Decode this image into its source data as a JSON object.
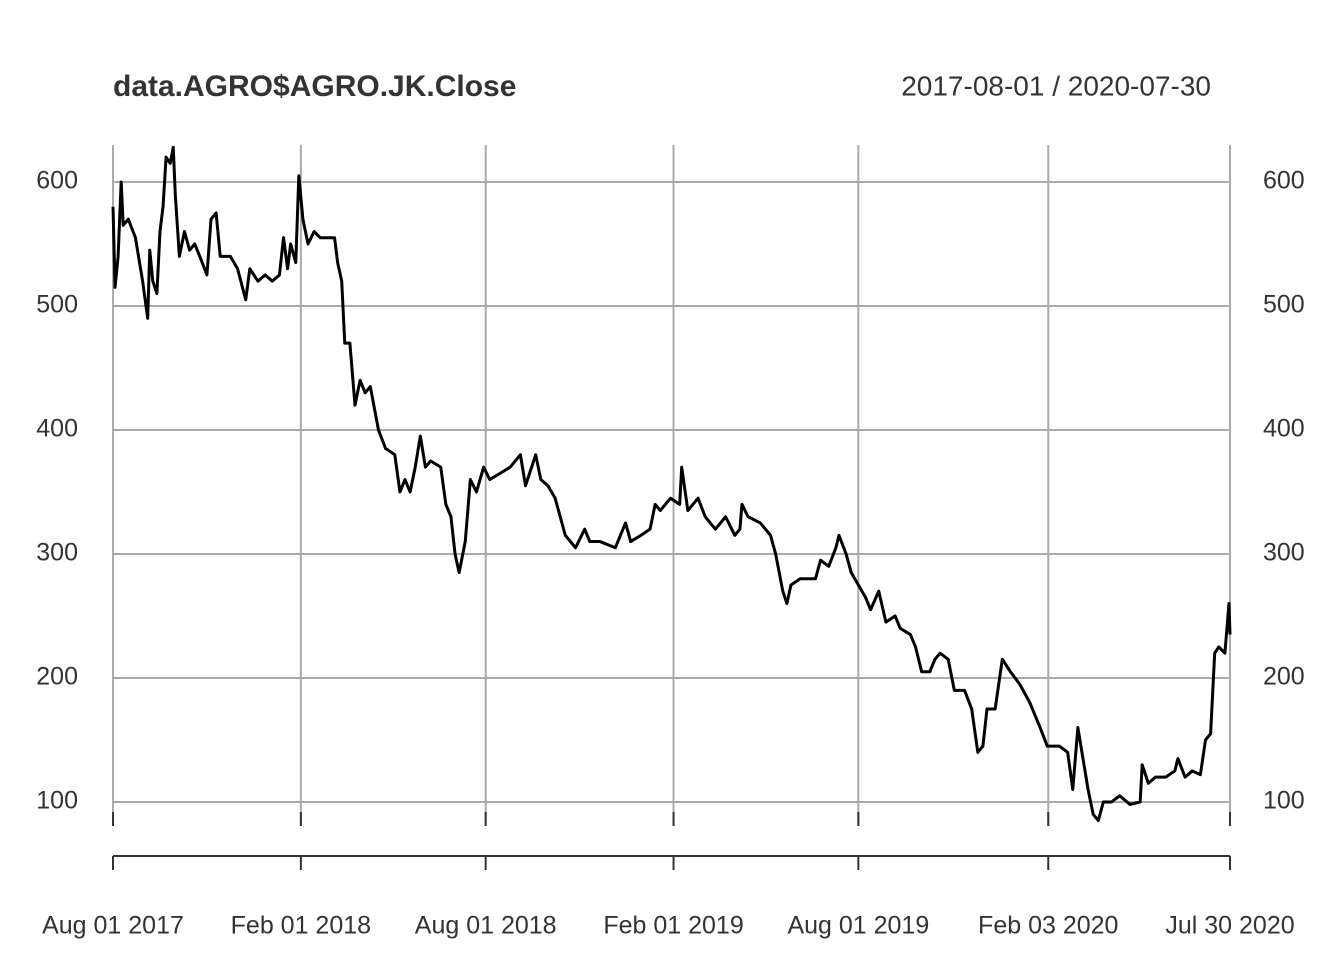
{
  "chart_data": {
    "type": "line",
    "title": "data.AGRO$AGRO.JK.Close",
    "subtitle": "2017-08-01 / 2020-07-30",
    "x": [
      "2017-08-01",
      "2017-08-03",
      "2017-08-06",
      "2017-08-09",
      "2017-08-11",
      "2017-08-16",
      "2017-08-23",
      "2017-08-30",
      "2017-09-04",
      "2017-09-06",
      "2017-09-09",
      "2017-09-13",
      "2017-09-16",
      "2017-09-19",
      "2017-09-22",
      "2017-09-26",
      "2017-09-29",
      "2017-10-01",
      "2017-10-05",
      "2017-10-10",
      "2017-10-15",
      "2017-10-20",
      "2017-10-25",
      "2017-11-01",
      "2017-11-05",
      "2017-11-10",
      "2017-11-14",
      "2017-11-24",
      "2017-12-01",
      "2017-12-09",
      "2017-12-13",
      "2017-12-21",
      "2017-12-28",
      "2018-01-04",
      "2018-01-11",
      "2018-01-15",
      "2018-01-19",
      "2018-01-22",
      "2018-01-27",
      "2018-01-30",
      "2018-02-03",
      "2018-02-08",
      "2018-02-14",
      "2018-02-20",
      "2018-03-06",
      "2018-03-09",
      "2018-03-13",
      "2018-03-16",
      "2018-03-21",
      "2018-03-26",
      "2018-03-31",
      "2018-04-05",
      "2018-04-10",
      "2018-04-18",
      "2018-04-25",
      "2018-05-04",
      "2018-05-09",
      "2018-05-14",
      "2018-05-19",
      "2018-05-24",
      "2018-05-29",
      "2018-06-03",
      "2018-06-08",
      "2018-06-18",
      "2018-06-23",
      "2018-06-28",
      "2018-07-02",
      "2018-07-06",
      "2018-07-12",
      "2018-07-17",
      "2018-07-23",
      "2018-07-30",
      "2018-08-05",
      "2018-08-15",
      "2018-08-25",
      "2018-08-30",
      "2018-09-04",
      "2018-09-09",
      "2018-09-19",
      "2018-09-24",
      "2018-10-01",
      "2018-10-08",
      "2018-10-13",
      "2018-10-18",
      "2018-10-28",
      "2018-11-06",
      "2018-11-11",
      "2018-11-21",
      "2018-12-06",
      "2018-12-16",
      "2018-12-21",
      "2018-12-31",
      "2019-01-09",
      "2019-01-14",
      "2019-01-19",
      "2019-01-29",
      "2019-02-07",
      "2019-02-09",
      "2019-02-15",
      "2019-02-25",
      "2019-03-04",
      "2019-03-14",
      "2019-03-24",
      "2019-04-02",
      "2019-04-07",
      "2019-04-09",
      "2019-04-15",
      "2019-04-27",
      "2019-05-07",
      "2019-05-12",
      "2019-05-19",
      "2019-05-23",
      "2019-05-27",
      "2019-06-05",
      "2019-06-20",
      "2019-06-25",
      "2019-07-03",
      "2019-07-10",
      "2019-07-13",
      "2019-07-20",
      "2019-07-25",
      "2019-08-01",
      "2019-08-08",
      "2019-08-13",
      "2019-08-21",
      "2019-08-28",
      "2019-09-06",
      "2019-09-11",
      "2019-09-21",
      "2019-09-26",
      "2019-10-02",
      "2019-10-10",
      "2019-10-15",
      "2019-10-20",
      "2019-10-28",
      "2019-11-03",
      "2019-11-13",
      "2019-11-20",
      "2019-11-26",
      "2019-12-01",
      "2019-12-05",
      "2019-12-13",
      "2019-12-20",
      "2019-12-28",
      "2020-01-06",
      "2020-01-16",
      "2020-01-26",
      "2020-02-02",
      "2020-02-14",
      "2020-02-22",
      "2020-02-27",
      "2020-03-03",
      "2020-03-07",
      "2020-03-13",
      "2020-03-18",
      "2020-03-23",
      "2020-03-28",
      "2020-04-05",
      "2020-04-13",
      "2020-04-23",
      "2020-05-03",
      "2020-05-05",
      "2020-05-11",
      "2020-05-18",
      "2020-05-28",
      "2020-06-06",
      "2020-06-09",
      "2020-06-16",
      "2020-06-23",
      "2020-07-01",
      "2020-07-06",
      "2020-07-11",
      "2020-07-15",
      "2020-07-19",
      "2020-07-25",
      "2020-07-29",
      "2020-07-30"
    ],
    "values": [
      580,
      515,
      540,
      600,
      565,
      570,
      555,
      520,
      490,
      545,
      520,
      510,
      560,
      580,
      620,
      615,
      628,
      590,
      540,
      560,
      545,
      550,
      540,
      525,
      570,
      575,
      540,
      540,
      530,
      505,
      530,
      520,
      525,
      520,
      525,
      555,
      530,
      550,
      535,
      605,
      570,
      550,
      560,
      555,
      555,
      535,
      520,
      470,
      470,
      420,
      440,
      430,
      435,
      400,
      385,
      380,
      350,
      360,
      350,
      370,
      395,
      370,
      375,
      370,
      340,
      330,
      300,
      285,
      310,
      360,
      350,
      370,
      360,
      365,
      370,
      375,
      380,
      355,
      380,
      360,
      355,
      345,
      330,
      315,
      305,
      320,
      310,
      310,
      305,
      325,
      310,
      315,
      320,
      340,
      335,
      345,
      340,
      370,
      335,
      345,
      330,
      320,
      330,
      315,
      320,
      340,
      330,
      325,
      315,
      300,
      270,
      260,
      275,
      280,
      280,
      295,
      290,
      305,
      315,
      300,
      285,
      275,
      265,
      255,
      270,
      245,
      250,
      240,
      235,
      225,
      205,
      205,
      215,
      220,
      215,
      190,
      190,
      175,
      140,
      145,
      175,
      175,
      215,
      205,
      195,
      180,
      160,
      145,
      145,
      140,
      110,
      160,
      140,
      110,
      90,
      85,
      100,
      100,
      105,
      98,
      100,
      130,
      115,
      120,
      120,
      125,
      135,
      120,
      125,
      122,
      150,
      155,
      220,
      225,
      220,
      260,
      235
    ],
    "color": "#000000",
    "xlim": [
      "2017-08-01",
      "2020-07-30"
    ],
    "xticks": [
      {
        "value": "2017-08-01",
        "label": "Aug 01 2017"
      },
      {
        "value": "2018-02-01",
        "label": "Feb 01 2018"
      },
      {
        "value": "2018-08-01",
        "label": "Aug 01 2018"
      },
      {
        "value": "2019-02-01",
        "label": "Feb 01 2019"
      },
      {
        "value": "2019-08-01",
        "label": "Aug 01 2019"
      },
      {
        "value": "2020-02-03",
        "label": "Feb 03 2020"
      },
      {
        "value": "2020-07-30",
        "label": "Jul 30 2020"
      }
    ],
    "ylim": [
      80.6,
      629.8
    ],
    "yticks": [
      100,
      200,
      300,
      400,
      500,
      600
    ],
    "grid": true
  }
}
